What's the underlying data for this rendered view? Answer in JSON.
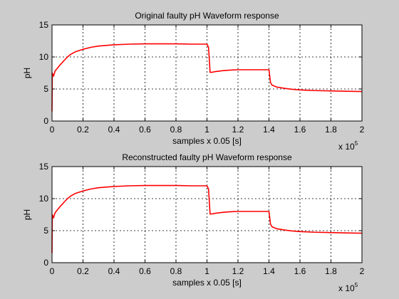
{
  "figure": {
    "background": "#cccccc",
    "axes_background": "#ffffff",
    "line_color": "#ff0000"
  },
  "chart_data": [
    {
      "type": "line",
      "title": "Original faulty pH Waveform response",
      "xlabel": "samples x 0.05 [s]",
      "ylabel": "pH",
      "x_multiplier": {
        "base": "x 10",
        "exponent": "5"
      },
      "xlim": [
        0,
        2
      ],
      "ylim": [
        0,
        15
      ],
      "xticks": [
        0,
        0.2,
        0.4,
        0.6,
        0.8,
        1,
        1.2,
        1.4,
        1.6,
        1.8,
        2
      ],
      "xtick_labels": [
        "0",
        "0.2",
        "0.4",
        "0.6",
        "0.8",
        "1",
        "1.2",
        "1.4",
        "1.6",
        "1.8",
        "2"
      ],
      "yticks": [
        0,
        5,
        10,
        15
      ],
      "ytick_labels": [
        "0",
        "5",
        "10",
        "15"
      ],
      "grid": true,
      "series": [
        {
          "color": "#ff0000",
          "x": [
            0,
            0.002,
            0.01,
            0.02,
            0.05,
            0.08,
            0.1,
            0.12,
            0.15,
            0.2,
            0.25,
            0.3,
            0.4,
            0.5,
            0.6,
            0.7,
            0.8,
            0.9,
            1.0,
            1.01,
            1.02,
            1.03,
            1.05,
            1.1,
            1.15,
            1.2,
            1.3,
            1.4,
            1.41,
            1.42,
            1.45,
            1.5,
            1.55,
            1.6,
            1.7,
            1.8,
            1.9,
            2.0
          ],
          "y": [
            1.5,
            7.5,
            7.0,
            7.8,
            8.7,
            9.5,
            10.0,
            10.4,
            10.8,
            11.2,
            11.5,
            11.7,
            11.9,
            12.0,
            12.05,
            12.05,
            12.05,
            12.0,
            12.0,
            11.5,
            7.6,
            7.6,
            7.7,
            7.85,
            7.95,
            8.0,
            8.0,
            8.0,
            6.0,
            5.6,
            5.3,
            5.1,
            4.95,
            4.85,
            4.75,
            4.7,
            4.65,
            4.6
          ]
        }
      ]
    },
    {
      "type": "line",
      "title": "Reconstructed faulty pH Waveform response",
      "xlabel": "samples x 0.05 [s]",
      "ylabel": "pH",
      "x_multiplier": {
        "base": "x 10",
        "exponent": "5"
      },
      "xlim": [
        0,
        2
      ],
      "ylim": [
        0,
        15
      ],
      "xticks": [
        0,
        0.2,
        0.4,
        0.6,
        0.8,
        1,
        1.2,
        1.4,
        1.6,
        1.8,
        2
      ],
      "xtick_labels": [
        "0",
        "0.2",
        "0.4",
        "0.6",
        "0.8",
        "1",
        "1.2",
        "1.4",
        "1.6",
        "1.8",
        "2"
      ],
      "yticks": [
        0,
        5,
        10,
        15
      ],
      "ytick_labels": [
        "0",
        "5",
        "10",
        "15"
      ],
      "grid": true,
      "series": [
        {
          "color": "#ff0000",
          "x": [
            0,
            0.002,
            0.01,
            0.02,
            0.05,
            0.08,
            0.1,
            0.12,
            0.15,
            0.2,
            0.25,
            0.3,
            0.4,
            0.5,
            0.6,
            0.7,
            0.8,
            0.9,
            1.0,
            1.01,
            1.02,
            1.03,
            1.05,
            1.1,
            1.15,
            1.2,
            1.3,
            1.4,
            1.41,
            1.42,
            1.45,
            1.5,
            1.55,
            1.6,
            1.7,
            1.8,
            1.9,
            2.0
          ],
          "y": [
            1.5,
            7.5,
            7.0,
            7.8,
            8.7,
            9.5,
            10.0,
            10.4,
            10.8,
            11.2,
            11.5,
            11.7,
            11.9,
            12.0,
            12.05,
            12.05,
            12.05,
            12.0,
            12.0,
            11.5,
            7.6,
            7.6,
            7.7,
            7.85,
            7.95,
            8.0,
            8.0,
            8.0,
            6.0,
            5.6,
            5.3,
            5.1,
            4.95,
            4.85,
            4.75,
            4.7,
            4.65,
            4.6
          ]
        }
      ]
    }
  ]
}
